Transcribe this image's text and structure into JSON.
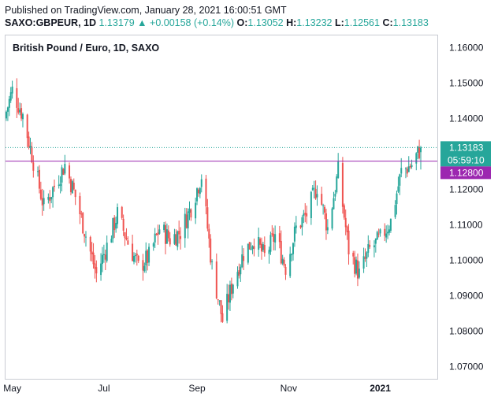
{
  "header": {
    "published": "Published on TradingView.com, January 28, 2021 16:00:51 GMT",
    "symbol": "SAXO:GBPEUR, 1D",
    "last": "1.13179",
    "change_arrow": "▲",
    "change": "+0.00158 (+0.14%)",
    "o_label": "O:",
    "o_value": "1.13052",
    "h_label": "H:",
    "h_value": "1.13232",
    "l_label": "L:",
    "l_value": "1.12561",
    "c_label": "C:",
    "c_value": "1.13183"
  },
  "colors": {
    "up": "#26a69a",
    "down": "#ef5350",
    "line": "#9c27b0",
    "price_badge": "#26a69a",
    "level_badge": "#9c27b0"
  },
  "chart_data": {
    "type": "candlestick",
    "title": "British Pound / Euro, 1D, SAXO",
    "ylim": [
      1.0665,
      1.1635
    ],
    "y_ticks": [
      "1.16000",
      "1.15000",
      "1.14000",
      "1.13000",
      "1.12000",
      "1.11000",
      "1.10000",
      "1.09000",
      "1.08000",
      "1.07000"
    ],
    "x_ticks": [
      "May",
      "Jul",
      "Sep",
      "Nov",
      "2021"
    ],
    "current_price": {
      "value": 1.13183,
      "label": "1.13183",
      "countdown": "05:59:10"
    },
    "horizontal_line": {
      "value": 1.128,
      "label": "1.12800"
    },
    "waypoints": [
      {
        "date": "2020-04-27",
        "close": 1.142
      },
      {
        "date": "2020-05-01",
        "close": 1.148
      },
      {
        "date": "2020-05-08",
        "close": 1.141
      },
      {
        "date": "2020-05-15",
        "close": 1.128
      },
      {
        "date": "2020-05-22",
        "close": 1.115
      },
      {
        "date": "2020-05-29",
        "close": 1.121
      },
      {
        "date": "2020-06-05",
        "close": 1.127
      },
      {
        "date": "2020-06-12",
        "close": 1.118
      },
      {
        "date": "2020-06-19",
        "close": 1.107
      },
      {
        "date": "2020-06-26",
        "close": 1.096
      },
      {
        "date": "2020-07-03",
        "close": 1.104
      },
      {
        "date": "2020-07-10",
        "close": 1.113
      },
      {
        "date": "2020-07-17",
        "close": 1.105
      },
      {
        "date": "2020-07-24",
        "close": 1.098
      },
      {
        "date": "2020-07-31",
        "close": 1.101
      },
      {
        "date": "2020-08-07",
        "close": 1.109
      },
      {
        "date": "2020-08-14",
        "close": 1.106
      },
      {
        "date": "2020-08-21",
        "close": 1.108
      },
      {
        "date": "2020-08-28",
        "close": 1.115
      },
      {
        "date": "2020-09-04",
        "close": 1.124
      },
      {
        "date": "2020-09-11",
        "close": 1.098
      },
      {
        "date": "2020-09-18",
        "close": 1.083
      },
      {
        "date": "2020-09-25",
        "close": 1.094
      },
      {
        "date": "2020-10-02",
        "close": 1.102
      },
      {
        "date": "2020-10-09",
        "close": 1.106
      },
      {
        "date": "2020-10-16",
        "close": 1.101
      },
      {
        "date": "2020-10-23",
        "close": 1.107
      },
      {
        "date": "2020-10-30",
        "close": 1.098
      },
      {
        "date": "2020-11-06",
        "close": 1.109
      },
      {
        "date": "2020-11-13",
        "close": 1.113
      },
      {
        "date": "2020-11-20",
        "close": 1.121
      },
      {
        "date": "2020-11-27",
        "close": 1.109
      },
      {
        "date": "2020-12-04",
        "close": 1.125
      },
      {
        "date": "2020-12-11",
        "close": 1.103
      },
      {
        "date": "2020-12-18",
        "close": 1.096
      },
      {
        "date": "2020-12-25",
        "close": 1.103
      },
      {
        "date": "2021-01-01",
        "close": 1.106
      },
      {
        "date": "2021-01-08",
        "close": 1.111
      },
      {
        "date": "2021-01-15",
        "close": 1.125
      },
      {
        "date": "2021-01-22",
        "close": 1.127
      },
      {
        "date": "2021-01-28",
        "close": 1.1318
      }
    ]
  }
}
